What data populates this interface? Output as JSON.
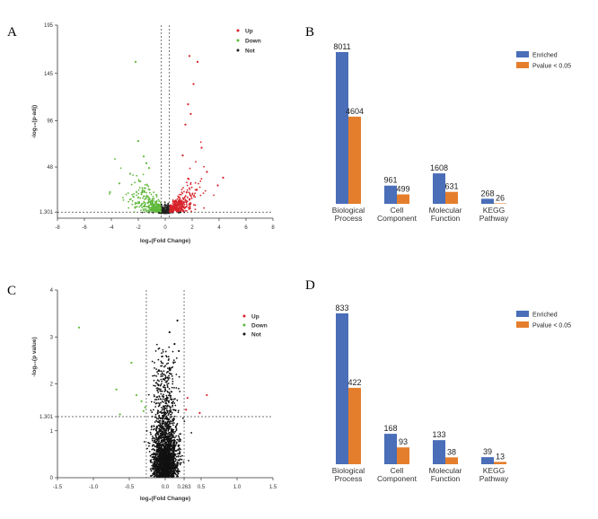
{
  "panels": {
    "A": {
      "letter": "A",
      "type": "scatter",
      "xlabel": "log₂(Fold Change)",
      "ylabel": "-log₁₀(p-adj)",
      "xticks": [
        "-8",
        "-6",
        "-4",
        "-2",
        "0",
        "2",
        "4",
        "6",
        "8"
      ],
      "yticks": [
        "1.301",
        "48",
        "96",
        "145",
        "195"
      ],
      "ymin": -5,
      "ymax": 195,
      "threshold_y": 1.301,
      "threshold_x": [
        -0.3,
        0.3
      ],
      "legend": [
        "Up",
        "Down",
        "Not"
      ],
      "colors": {
        "Up": "#d8232a",
        "Down": "#5fb83a",
        "Not": "#222222"
      },
      "highlight_points": [
        {
          "x": 1.8,
          "y": 163,
          "series": "Up"
        },
        {
          "x": 2.4,
          "y": 157,
          "series": "Up"
        },
        {
          "x": 2.1,
          "y": 134,
          "series": "Up"
        },
        {
          "x": 1.7,
          "y": 113,
          "series": "Up"
        },
        {
          "x": 1.9,
          "y": 103,
          "series": "Up"
        },
        {
          "x": 1.5,
          "y": 92,
          "series": "Up"
        },
        {
          "x": 2.7,
          "y": 68,
          "series": "Up"
        },
        {
          "x": 1.3,
          "y": 60,
          "series": "Up"
        },
        {
          "x": 3.1,
          "y": 43,
          "series": "Up"
        },
        {
          "x": 4.3,
          "y": 37,
          "series": "Up"
        },
        {
          "x": 3.9,
          "y": 29,
          "series": "Up"
        },
        {
          "x": -2.2,
          "y": 157,
          "series": "Down"
        },
        {
          "x": -2.0,
          "y": 75,
          "series": "Down"
        },
        {
          "x": -1.6,
          "y": 59,
          "series": "Down"
        },
        {
          "x": -1.4,
          "y": 52,
          "series": "Down"
        },
        {
          "x": -1.2,
          "y": 47,
          "series": "Down"
        },
        {
          "x": -2.6,
          "y": 41,
          "series": "Down"
        },
        {
          "x": -3.4,
          "y": 31,
          "series": "Down"
        },
        {
          "x": -4.1,
          "y": 22,
          "series": "Down"
        }
      ]
    },
    "B": {
      "letter": "B",
      "type": "bar",
      "categories": [
        "Biological\nProcess",
        "Cell\nComponent",
        "Molecular\nFunction",
        "KEGG\nPathway"
      ],
      "series": [
        {
          "name": "Enriched",
          "color": "#4a6eb8",
          "values": [
            8011,
            961,
            1608,
            268
          ]
        },
        {
          "name": "Pvalue < 0.05",
          "color": "#e57e2c",
          "values": [
            4604,
            499,
            631,
            26
          ]
        }
      ],
      "ymax": 8011
    },
    "C": {
      "letter": "C",
      "type": "scatter",
      "xlabel": "log₂(Fold Change)",
      "ylabel": "-log₁₀(p value)",
      "xticks": [
        "-1.5",
        "-1.0",
        "-0.5",
        "0.0",
        "0.263",
        "0.5",
        "1.0",
        "1.5"
      ],
      "xtick_values": [
        -1.5,
        -1.0,
        -0.5,
        0.0,
        0.263,
        0.5,
        1.0,
        1.5
      ],
      "yticks": [
        "0",
        "1",
        "1.301",
        "2",
        "3",
        "4"
      ],
      "ytick_values": [
        0,
        1,
        1.301,
        2,
        3,
        4
      ],
      "ymin": 0,
      "ymax": 4,
      "threshold_y": 1.301,
      "threshold_x": [
        -0.263,
        0.263
      ],
      "legend": [
        "Up",
        "Down",
        "Not"
      ],
      "colors": {
        "Up": "#d8232a",
        "Down": "#5fb83a",
        "Not": "#111111"
      },
      "highlight_points": [
        {
          "x": -1.2,
          "y": 3.2,
          "series": "Down"
        },
        {
          "x": -0.47,
          "y": 2.45,
          "series": "Down"
        },
        {
          "x": -0.68,
          "y": 1.88,
          "series": "Down"
        },
        {
          "x": -0.4,
          "y": 1.76,
          "series": "Down"
        },
        {
          "x": -0.33,
          "y": 1.63,
          "series": "Down"
        },
        {
          "x": -0.63,
          "y": 1.35,
          "series": "Down"
        },
        {
          "x": -0.3,
          "y": 1.42,
          "series": "Down"
        },
        {
          "x": -0.28,
          "y": 1.5,
          "series": "Down"
        },
        {
          "x": 0.58,
          "y": 1.76,
          "series": "Up"
        },
        {
          "x": 0.31,
          "y": 1.7,
          "series": "Up"
        },
        {
          "x": 0.48,
          "y": 1.38,
          "series": "Up"
        },
        {
          "x": 0.29,
          "y": 1.45,
          "series": "Up"
        },
        {
          "x": 0.17,
          "y": 3.35,
          "series": "Not"
        },
        {
          "x": 0.06,
          "y": 3.1,
          "series": "Not"
        },
        {
          "x": 0.13,
          "y": 2.85,
          "series": "Not"
        },
        {
          "x": 0.19,
          "y": 2.7,
          "series": "Not"
        }
      ]
    },
    "D": {
      "letter": "D",
      "type": "bar",
      "categories": [
        "Biological\nProcess",
        "Cell\nComponent",
        "Molecular\nFunction",
        "KEGG\nPathway"
      ],
      "series": [
        {
          "name": "Enriched",
          "color": "#4a6eb8",
          "values": [
            833,
            168,
            133,
            39
          ]
        },
        {
          "name": "Pvalue < 0.05",
          "color": "#e57e2c",
          "values": [
            422,
            93,
            38,
            13
          ]
        }
      ],
      "ymax": 833
    }
  },
  "chart_data": [
    {
      "type": "scatter",
      "xlabel": "log₂(Fold Change)",
      "ylabel": "-log₁₀(p-adj)",
      "xlim": [
        -8,
        8
      ],
      "ylim": [
        -5,
        195
      ],
      "legend": [
        "Up",
        "Down",
        "Not"
      ],
      "thresholds": {
        "y": 1.301,
        "x": [
          -0.3,
          0.3
        ]
      }
    },
    {
      "type": "bar",
      "categories": [
        "Biological Process",
        "Cell Component",
        "Molecular Function",
        "KEGG Pathway"
      ],
      "series": [
        {
          "name": "Enriched",
          "values": [
            8011,
            961,
            1608,
            268
          ]
        },
        {
          "name": "Pvalue < 0.05",
          "values": [
            4604,
            499,
            631,
            26
          ]
        }
      ]
    },
    {
      "type": "scatter",
      "xlabel": "log₂(Fold Change)",
      "ylabel": "-log₁₀(p value)",
      "xlim": [
        -1.5,
        1.5
      ],
      "ylim": [
        0,
        4
      ],
      "legend": [
        "Up",
        "Down",
        "Not"
      ],
      "thresholds": {
        "y": 1.301,
        "x": [
          -0.263,
          0.263
        ]
      }
    },
    {
      "type": "bar",
      "categories": [
        "Biological Process",
        "Cell Component",
        "Molecular Function",
        "KEGG Pathway"
      ],
      "series": [
        {
          "name": "Enriched",
          "values": [
            833,
            168,
            133,
            39
          ]
        },
        {
          "name": "Pvalue < 0.05",
          "values": [
            422,
            93,
            38,
            13
          ]
        }
      ]
    }
  ]
}
